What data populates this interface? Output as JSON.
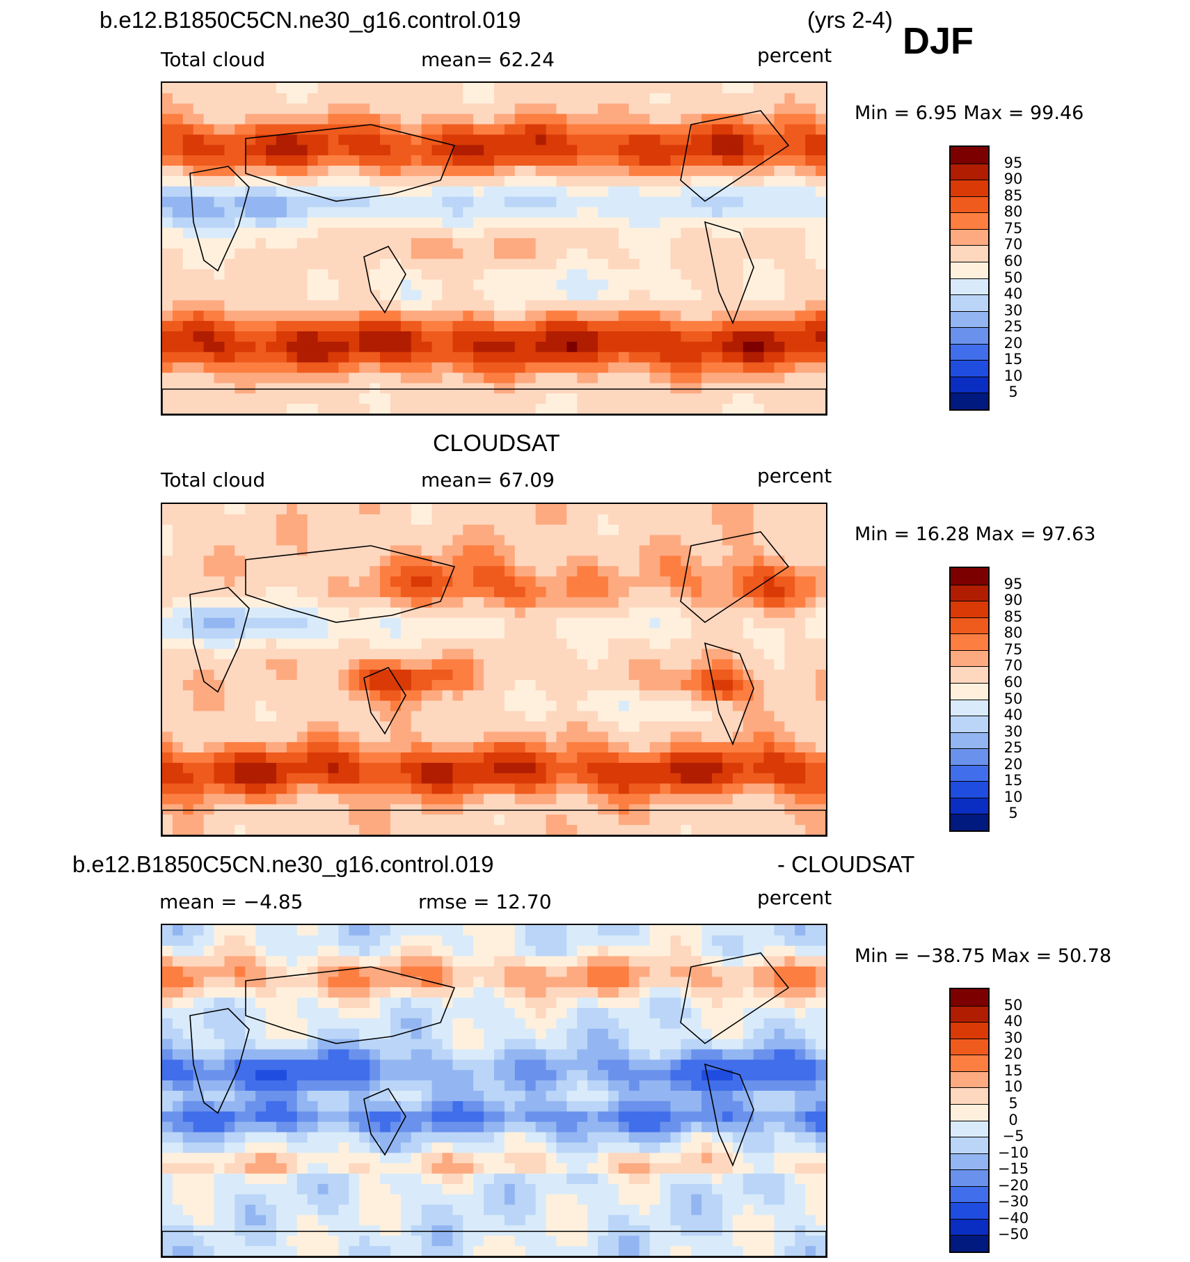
{
  "header": {
    "case_name": "b.e12.B1850C5CN.ne30_g16.control.019",
    "years": "(yrs 2-4)",
    "season": "DJF"
  },
  "panel1": {
    "left_label": "Total cloud",
    "mean_text": "mean=   62.24",
    "units": "percent",
    "minmax_text": "Min =    6.95  Max =   99.46"
  },
  "panel2": {
    "title": "CLOUDSAT",
    "left_label": "Total cloud",
    "mean_text": "mean=   67.09",
    "units": "percent",
    "minmax_text": "Min =   16.28  Max =   97.63"
  },
  "panel3": {
    "title_left": "b.e12.B1850C5CN.ne30_g16.control.019",
    "title_right": "- CLOUDSAT",
    "mean_text": "mean =   −4.85",
    "rmse_text": "rmse =   12.70",
    "units": "percent",
    "minmax_text": "Min = −38.75  Max =   50.78"
  },
  "chart_data": [
    {
      "type": "heatmap",
      "title": "b.e12.B1850C5CN.ne30_g16.control.019 (yrs 2-4) DJF",
      "variable": "Total cloud",
      "units": "percent",
      "mean": 62.24,
      "min": 6.95,
      "max": 99.46,
      "levels": [
        95,
        90,
        85,
        80,
        75,
        70,
        60,
        50,
        40,
        30,
        25,
        20,
        15,
        10,
        5
      ],
      "colors": [
        "#7d0000",
        "#b11d00",
        "#d93a06",
        "#ef5a1d",
        "#fd7e41",
        "#fdaa80",
        "#fed7bf",
        "#fff0dd",
        "#d9ebfa",
        "#bad5f7",
        "#93b6f2",
        "#6a92ec",
        "#416eea",
        "#1f4de0",
        "#0a2ec2",
        "#001a80"
      ]
    },
    {
      "type": "heatmap",
      "title": "CLOUDSAT",
      "variable": "Total cloud",
      "units": "percent",
      "mean": 67.09,
      "min": 16.28,
      "max": 97.63,
      "levels": [
        95,
        90,
        85,
        80,
        75,
        70,
        60,
        50,
        40,
        30,
        25,
        20,
        15,
        10,
        5
      ],
      "colors": [
        "#7d0000",
        "#b11d00",
        "#d93a06",
        "#ef5a1d",
        "#fd7e41",
        "#fdaa80",
        "#fed7bf",
        "#fff0dd",
        "#d9ebfa",
        "#bad5f7",
        "#93b6f2",
        "#6a92ec",
        "#416eea",
        "#1f4de0",
        "#0a2ec2",
        "#001a80"
      ]
    },
    {
      "type": "heatmap",
      "title": "b.e12.B1850C5CN.ne30_g16.control.019 - CLOUDSAT",
      "units": "percent",
      "mean": -4.85,
      "rmse": 12.7,
      "min": -38.75,
      "max": 50.78,
      "levels": [
        "50",
        "40",
        "30",
        "20",
        "15",
        "10",
        "5",
        "0",
        "−5",
        "−10",
        "−15",
        "−20",
        "−30",
        "−40",
        "−50"
      ],
      "colors": [
        "#7d0000",
        "#b11d00",
        "#d93a06",
        "#ef5a1d",
        "#fd7e41",
        "#fdaa80",
        "#fed7bf",
        "#fff0dd",
        "#d9ebfa",
        "#bad5f7",
        "#93b6f2",
        "#6a92ec",
        "#416eea",
        "#1f4de0",
        "#0a2ec2",
        "#001a80"
      ]
    }
  ]
}
